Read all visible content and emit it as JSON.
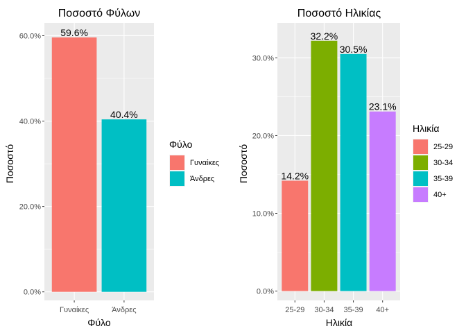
{
  "chart_data": [
    {
      "type": "bar",
      "title": "Ποσοστό Φύλων",
      "xlabel": "Φύλο",
      "ylabel": "Ποσοστό",
      "categories": [
        "Γυναίκες",
        "Άνδρες"
      ],
      "values": [
        59.6,
        40.4
      ],
      "data_labels": [
        "59.6%",
        "40.4%"
      ],
      "yticks": [
        0,
        20,
        40,
        60
      ],
      "ytick_labels": [
        "0.0%",
        "20.0%",
        "40.0%",
        "60.0%"
      ],
      "ylim": [
        -2,
        63
      ],
      "colors": [
        "#F8766D",
        "#00BFC4"
      ],
      "grid": true,
      "legend": {
        "title": "Φύλο",
        "position": "right",
        "entries": [
          "Γυναίκες",
          "Άνδρες"
        ]
      }
    },
    {
      "type": "bar",
      "title": "Ποσοστό Ηλικίας",
      "xlabel": "Ηλικία",
      "ylabel": "Ποσοστό",
      "categories": [
        "25-29",
        "30-34",
        "35-39",
        "40+"
      ],
      "values": [
        14.2,
        32.2,
        30.5,
        23.1
      ],
      "data_labels": [
        "14.2%",
        "32.2%",
        "30.5%",
        "23.1%"
      ],
      "yticks": [
        0,
        10,
        20,
        30
      ],
      "ytick_labels": [
        "0.0%",
        "10.0%",
        "20.0%",
        "30.0%"
      ],
      "ylim": [
        -1.2,
        34.5
      ],
      "colors": [
        "#F8766D",
        "#7CAE00",
        "#00BFC4",
        "#C77CFF"
      ],
      "grid": true,
      "legend": {
        "title": "Ηλικία",
        "position": "right",
        "entries": [
          "25-29",
          "30-34",
          "35-39",
          "40+"
        ]
      }
    }
  ]
}
